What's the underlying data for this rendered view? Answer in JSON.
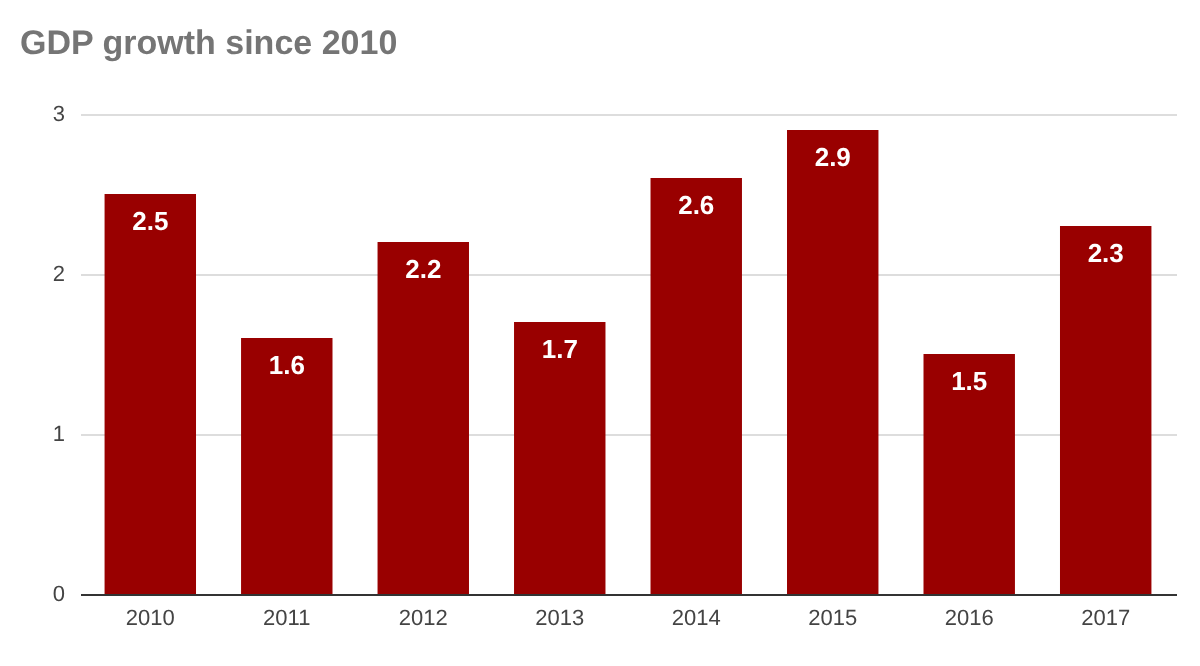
{
  "chart_data": {
    "type": "bar",
    "title": "GDP growth since 2010",
    "categories": [
      "2010",
      "2011",
      "2012",
      "2013",
      "2014",
      "2015",
      "2016",
      "2017"
    ],
    "values": [
      2.5,
      1.6,
      2.2,
      1.7,
      2.6,
      2.9,
      1.5,
      2.3
    ],
    "color": "#990000",
    "ylim": [
      0,
      3
    ],
    "yticks": [
      0,
      1,
      2,
      3
    ],
    "grid": "y",
    "data_labels": true
  }
}
